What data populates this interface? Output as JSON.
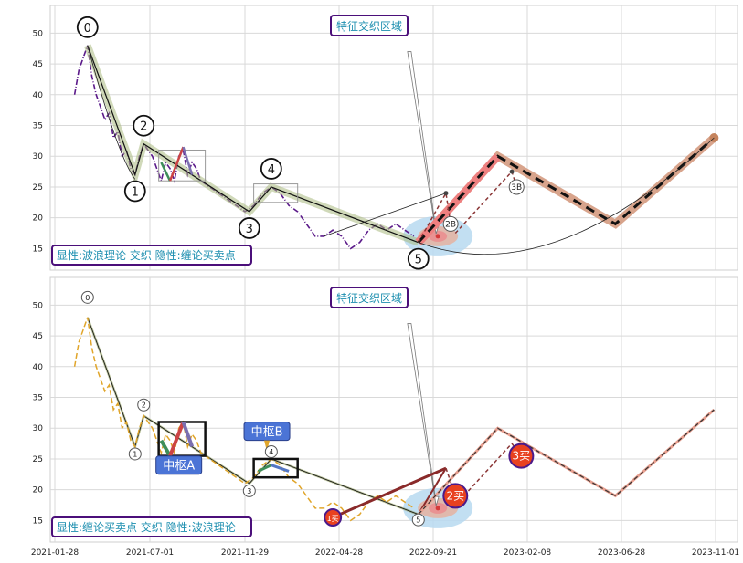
{
  "chart_data": [
    {
      "type": "line",
      "panel": "top",
      "ylim": [
        11.5,
        54.5
      ],
      "y_ticks": [
        15,
        20,
        25,
        30,
        35,
        40,
        45,
        50
      ],
      "title_box": "特征交织区域",
      "legend_box": "显性:波浪理论 交织 隐性:缠论买卖点",
      "price_series": [
        {
          "x": "2021-03-01",
          "y": 40
        },
        {
          "x": "2021-03-08",
          "y": 44
        },
        {
          "x": "2021-03-15",
          "y": 46
        },
        {
          "x": "2021-03-22",
          "y": 48
        },
        {
          "x": "2021-03-29",
          "y": 43
        },
        {
          "x": "2021-04-05",
          "y": 40
        },
        {
          "x": "2021-04-12",
          "y": 38
        },
        {
          "x": "2021-04-19",
          "y": 36
        },
        {
          "x": "2021-04-26",
          "y": 37
        },
        {
          "x": "2021-05-03",
          "y": 33
        },
        {
          "x": "2021-05-10",
          "y": 34
        },
        {
          "x": "2021-05-17",
          "y": 30
        },
        {
          "x": "2021-05-24",
          "y": 31
        },
        {
          "x": "2021-05-31",
          "y": 28
        },
        {
          "x": "2021-06-07",
          "y": 27
        },
        {
          "x": "2021-06-14",
          "y": 30
        },
        {
          "x": "2021-06-21",
          "y": 32
        },
        {
          "x": "2021-06-28",
          "y": 31
        },
        {
          "x": "2021-07-05",
          "y": 30
        },
        {
          "x": "2021-07-12",
          "y": 28
        },
        {
          "x": "2021-07-19",
          "y": 26
        },
        {
          "x": "2021-07-26",
          "y": 29
        },
        {
          "x": "2021-08-02",
          "y": 28
        },
        {
          "x": "2021-08-09",
          "y": 26
        },
        {
          "x": "2021-08-16",
          "y": 30
        },
        {
          "x": "2021-08-23",
          "y": 31
        },
        {
          "x": "2021-08-30",
          "y": 27
        },
        {
          "x": "2021-09-06",
          "y": 29
        },
        {
          "x": "2021-09-13",
          "y": 28
        },
        {
          "x": "2021-09-20",
          "y": 26
        },
        {
          "x": "2021-10-04",
          "y": 25
        },
        {
          "x": "2021-10-18",
          "y": 24
        },
        {
          "x": "2021-11-01",
          "y": 23
        },
        {
          "x": "2021-11-15",
          "y": 22
        },
        {
          "x": "2021-11-29",
          "y": 21
        },
        {
          "x": "2021-12-13",
          "y": 22
        },
        {
          "x": "2021-12-27",
          "y": 24
        },
        {
          "x": "2022-01-10",
          "y": 25
        },
        {
          "x": "2022-01-24",
          "y": 24
        },
        {
          "x": "2022-02-07",
          "y": 22
        },
        {
          "x": "2022-02-21",
          "y": 21
        },
        {
          "x": "2022-03-07",
          "y": 19
        },
        {
          "x": "2022-03-21",
          "y": 17
        },
        {
          "x": "2022-04-04",
          "y": 17
        },
        {
          "x": "2022-04-18",
          "y": 18
        },
        {
          "x": "2022-05-02",
          "y": 17
        },
        {
          "x": "2022-05-16",
          "y": 15
        },
        {
          "x": "2022-05-30",
          "y": 16
        },
        {
          "x": "2022-06-13",
          "y": 18
        },
        {
          "x": "2022-06-27",
          "y": 19
        },
        {
          "x": "2022-07-11",
          "y": 18
        },
        {
          "x": "2022-07-25",
          "y": 19
        },
        {
          "x": "2022-08-08",
          "y": 18
        },
        {
          "x": "2022-08-22",
          "y": 17
        }
      ],
      "wave_points": [
        {
          "label": "0",
          "x": "2021-03-22",
          "y": 48
        },
        {
          "label": "1",
          "x": "2021-06-07",
          "y": 27
        },
        {
          "label": "2",
          "x": "2021-06-21",
          "y": 32
        },
        {
          "label": "3",
          "x": "2021-12-06",
          "y": 21
        },
        {
          "label": "4",
          "x": "2022-01-10",
          "y": 25
        },
        {
          "label": "5",
          "x": "2022-08-29",
          "y": 16
        }
      ],
      "projection": [
        {
          "x": "2022-08-29",
          "y": 16
        },
        {
          "x": "2022-12-26",
          "y": 30
        },
        {
          "x": "2023-06-19",
          "y": 19
        },
        {
          "x": "2023-10-30",
          "y": 33
        }
      ],
      "annotations": [
        {
          "label": "2B",
          "x": "2022-10-17",
          "y": 19
        },
        {
          "label": "3B",
          "x": "2023-01-23",
          "y": 25
        }
      ]
    },
    {
      "type": "line",
      "panel": "bottom",
      "ylim": [
        11.5,
        54.5
      ],
      "y_ticks": [
        15,
        20,
        25,
        30,
        35,
        40,
        45,
        50
      ],
      "x_ticks": [
        "2021-01-28",
        "2021-07-01",
        "2021-11-29",
        "2022-04-28",
        "2022-09-21",
        "2023-02-08",
        "2023-06-28",
        "2023-11-01"
      ],
      "title_box": "特征交织区域",
      "legend_box": "显性:缠论买卖点 交织 隐性:波浪理论",
      "center_labels": [
        "中枢A",
        "中枢B"
      ],
      "wave_points": [
        {
          "label": "0",
          "x": "2021-03-22",
          "y": 48
        },
        {
          "label": "1",
          "x": "2021-06-07",
          "y": 27
        },
        {
          "label": "2",
          "x": "2021-06-21",
          "y": 32
        },
        {
          "label": "3",
          "x": "2021-12-06",
          "y": 21
        },
        {
          "label": "4",
          "x": "2022-01-10",
          "y": 25
        },
        {
          "label": "5",
          "x": "2022-08-29",
          "y": 16
        }
      ],
      "buy_points": [
        {
          "label": "1买",
          "x": "2022-04-18",
          "y": 15.5
        },
        {
          "label": "2买",
          "x": "2022-10-24",
          "y": 19
        },
        {
          "label": "3买",
          "x": "2023-01-30",
          "y": 25.5
        }
      ],
      "projection": [
        {
          "x": "2022-08-29",
          "y": 16
        },
        {
          "x": "2022-12-26",
          "y": 30
        },
        {
          "x": "2023-06-19",
          "y": 19
        },
        {
          "x": "2023-10-30",
          "y": 33
        }
      ]
    }
  ]
}
